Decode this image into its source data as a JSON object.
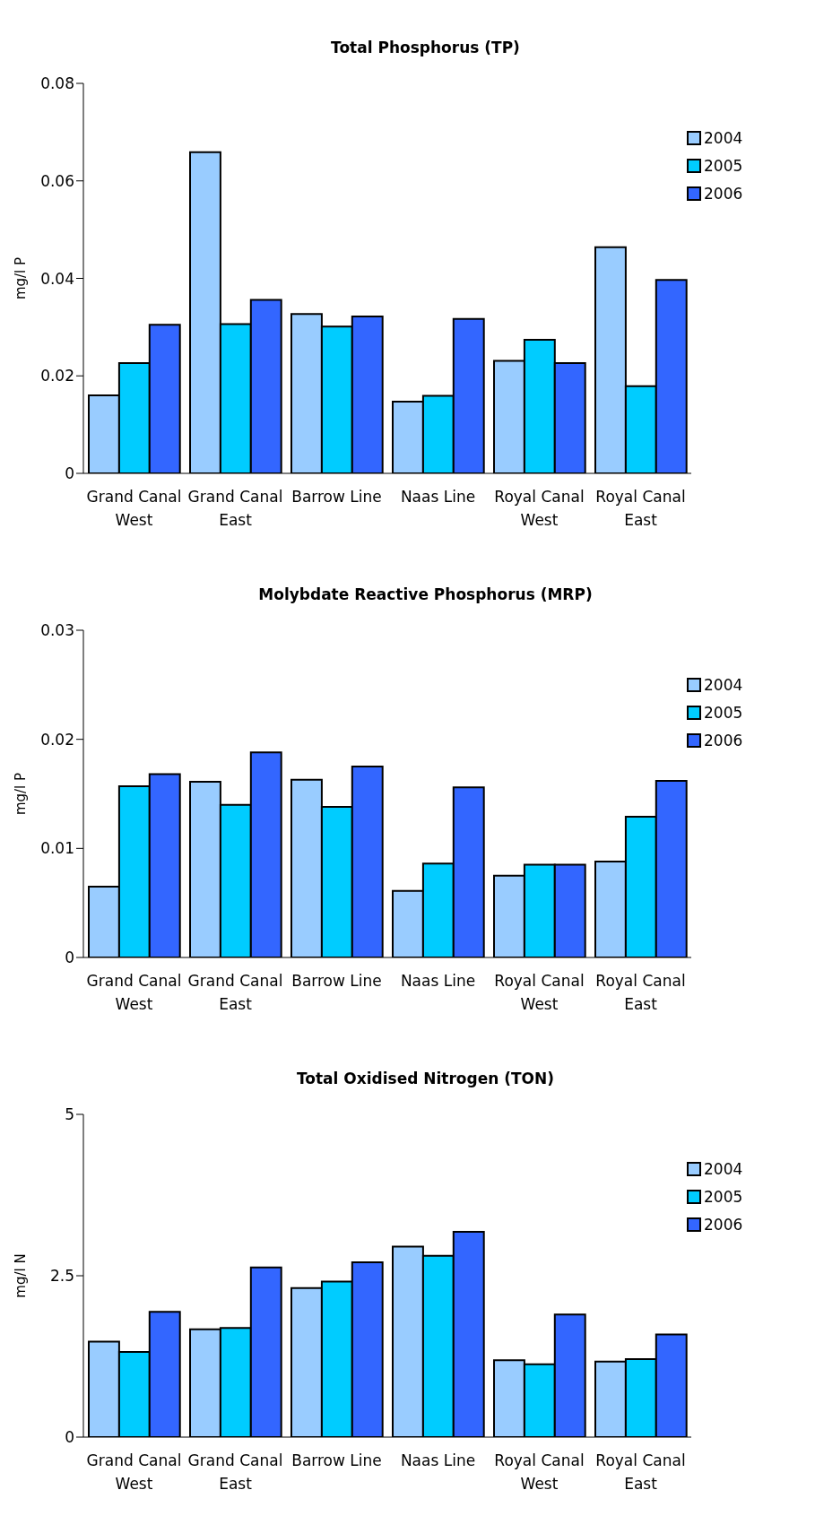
{
  "chart_data": [
    {
      "type": "bar",
      "title": "Total Phosphorus (TP)",
      "ylabel": "mg/l P",
      "categories": [
        "Grand Canal West",
        "Grand Canal East",
        "Barrow Line",
        "Naas Line",
        "Royal Canal West",
        "Royal Canal East"
      ],
      "series": [
        {
          "name": "2004",
          "color": "#99ccff",
          "values": [
            0.016,
            0.0659,
            0.0327,
            0.0147,
            0.0231,
            0.0464
          ]
        },
        {
          "name": "2005",
          "color": "#00ccff",
          "values": [
            0.0226,
            0.0306,
            0.0301,
            0.0159,
            0.0274,
            0.0179
          ]
        },
        {
          "name": "2006",
          "color": "#3366ff",
          "values": [
            0.0305,
            0.0356,
            0.0322,
            0.0317,
            0.0226,
            0.0397
          ]
        }
      ],
      "ylim": [
        0,
        0.08
      ],
      "yticks": [
        0,
        0.02,
        0.04,
        0.06,
        0.08
      ],
      "grid": false,
      "legend": "top right"
    },
    {
      "type": "bar",
      "title": "Molybdate Reactive Phosphorus (MRP)",
      "ylabel": "mg/l P",
      "categories": [
        "Grand Canal West",
        "Grand Canal East",
        "Barrow Line",
        "Naas Line",
        "Royal Canal West",
        "Royal Canal East"
      ],
      "series": [
        {
          "name": "2004",
          "color": "#99ccff",
          "values": [
            0.0065,
            0.0161,
            0.0163,
            0.0061,
            0.0075,
            0.0088
          ]
        },
        {
          "name": "2005",
          "color": "#00ccff",
          "values": [
            0.0157,
            0.014,
            0.0138,
            0.0086,
            0.0085,
            0.0129
          ]
        },
        {
          "name": "2006",
          "color": "#3366ff",
          "values": [
            0.0168,
            0.0188,
            0.0175,
            0.0156,
            0.0085,
            0.0162
          ]
        }
      ],
      "ylim": [
        0,
        0.03
      ],
      "yticks": [
        0,
        0.01,
        0.02,
        0.03
      ],
      "grid": false,
      "legend": "top right"
    },
    {
      "type": "bar",
      "title": "Total Oxidised Nitrogen (TON)",
      "ylabel": "mg/l N",
      "categories": [
        "Grand Canal West",
        "Grand Canal East",
        "Barrow Line",
        "Naas Line",
        "Royal Canal West",
        "Royal Canal East"
      ],
      "series": [
        {
          "name": "2004",
          "color": "#99ccff",
          "values": [
            1.48,
            1.67,
            2.31,
            2.95,
            1.19,
            1.17
          ]
        },
        {
          "name": "2005",
          "color": "#00ccff",
          "values": [
            1.32,
            1.69,
            2.41,
            2.81,
            1.13,
            1.21
          ]
        },
        {
          "name": "2006",
          "color": "#3366ff",
          "values": [
            1.94,
            2.63,
            2.71,
            3.18,
            1.9,
            1.59
          ]
        }
      ],
      "ylim": [
        0,
        5
      ],
      "yticks": [
        0,
        2.5,
        5
      ],
      "grid": false,
      "legend": "top right"
    }
  ]
}
